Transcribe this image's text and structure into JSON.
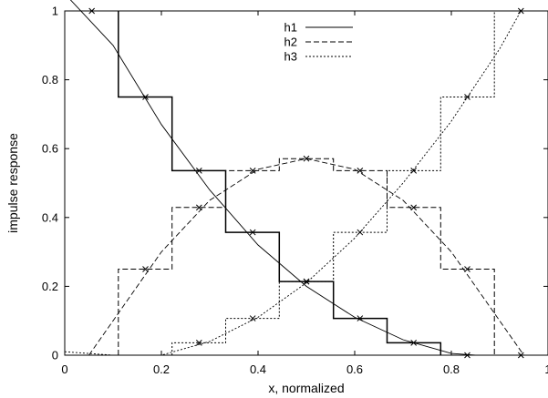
{
  "chart_data": {
    "type": "line",
    "title": "",
    "xlabel": "x, normalized",
    "ylabel": "impulse response",
    "xlim": [
      0,
      1
    ],
    "ylim": [
      0,
      1
    ],
    "x_ticks": [
      "0",
      "0.2",
      "0.4",
      "0.6",
      "0.8",
      "1"
    ],
    "y_ticks": [
      "0",
      "0.2",
      "0.4",
      "0.6",
      "0.8",
      "1"
    ],
    "grid": false,
    "legend_position": "top-center",
    "series": [
      {
        "name": "h1",
        "style": "solid",
        "curve": [
          [
            0.0,
            1.05
          ],
          [
            0.1,
            0.9
          ],
          [
            0.2,
            0.67
          ],
          [
            0.3,
            0.48
          ],
          [
            0.4,
            0.32
          ],
          [
            0.5,
            0.2
          ],
          [
            0.6,
            0.11
          ],
          [
            0.7,
            0.045
          ],
          [
            0.8,
            0.005
          ],
          [
            0.85,
            0.0
          ]
        ],
        "markers": [
          [
            0.056,
            1.0
          ],
          [
            0.167,
            0.75
          ],
          [
            0.278,
            0.536
          ],
          [
            0.389,
            0.357
          ],
          [
            0.5,
            0.214
          ],
          [
            0.611,
            0.107
          ],
          [
            0.722,
            0.036
          ],
          [
            0.833,
            0.0
          ]
        ],
        "steps": [
          [
            0.111,
            1.0
          ],
          [
            0.111,
            0.75
          ],
          [
            0.222,
            0.75
          ],
          [
            0.222,
            0.536
          ],
          [
            0.333,
            0.536
          ],
          [
            0.333,
            0.357
          ],
          [
            0.444,
            0.357
          ],
          [
            0.444,
            0.214
          ],
          [
            0.556,
            0.214
          ],
          [
            0.556,
            0.107
          ],
          [
            0.667,
            0.107
          ],
          [
            0.667,
            0.036
          ],
          [
            0.778,
            0.036
          ],
          [
            0.778,
            0.0
          ]
        ]
      },
      {
        "name": "h2",
        "style": "dashed",
        "curve": [
          [
            0.05,
            0.0
          ],
          [
            0.1,
            0.1
          ],
          [
            0.2,
            0.3
          ],
          [
            0.3,
            0.45
          ],
          [
            0.4,
            0.54
          ],
          [
            0.5,
            0.571
          ],
          [
            0.6,
            0.54
          ],
          [
            0.7,
            0.45
          ],
          [
            0.8,
            0.3
          ],
          [
            0.9,
            0.1
          ],
          [
            0.95,
            0.0
          ]
        ],
        "markers": [
          [
            0.167,
            0.25
          ],
          [
            0.278,
            0.429
          ],
          [
            0.389,
            0.536
          ],
          [
            0.5,
            0.571
          ],
          [
            0.611,
            0.536
          ],
          [
            0.722,
            0.429
          ],
          [
            0.833,
            0.25
          ],
          [
            0.944,
            0.0
          ]
        ],
        "steps": [
          [
            0.111,
            0.0
          ],
          [
            0.111,
            0.25
          ],
          [
            0.222,
            0.25
          ],
          [
            0.222,
            0.429
          ],
          [
            0.333,
            0.429
          ],
          [
            0.333,
            0.536
          ],
          [
            0.444,
            0.536
          ],
          [
            0.444,
            0.571
          ],
          [
            0.556,
            0.571
          ],
          [
            0.556,
            0.536
          ],
          [
            0.667,
            0.536
          ],
          [
            0.667,
            0.429
          ],
          [
            0.778,
            0.429
          ],
          [
            0.778,
            0.25
          ],
          [
            0.889,
            0.25
          ],
          [
            0.889,
            0.0
          ]
        ]
      },
      {
        "name": "h3",
        "style": "dotted",
        "curve": [
          [
            0.0,
            0.01
          ],
          [
            0.1,
            0.0
          ],
          [
            0.2,
            0.0
          ],
          [
            0.3,
            0.04
          ],
          [
            0.4,
            0.11
          ],
          [
            0.5,
            0.21
          ],
          [
            0.6,
            0.34
          ],
          [
            0.7,
            0.5
          ],
          [
            0.8,
            0.68
          ],
          [
            0.9,
            0.89
          ],
          [
            0.944,
            1.0
          ],
          [
            1.0,
            1.0
          ]
        ],
        "markers": [
          [
            0.278,
            0.036
          ],
          [
            0.389,
            0.107
          ],
          [
            0.5,
            0.214
          ],
          [
            0.611,
            0.357
          ],
          [
            0.722,
            0.536
          ],
          [
            0.833,
            0.75
          ],
          [
            0.944,
            1.0
          ]
        ],
        "steps": [
          [
            0.222,
            0.0
          ],
          [
            0.222,
            0.036
          ],
          [
            0.333,
            0.036
          ],
          [
            0.333,
            0.107
          ],
          [
            0.444,
            0.107
          ],
          [
            0.444,
            0.214
          ],
          [
            0.556,
            0.214
          ],
          [
            0.556,
            0.357
          ],
          [
            0.667,
            0.357
          ],
          [
            0.667,
            0.536
          ],
          [
            0.778,
            0.536
          ],
          [
            0.778,
            0.75
          ],
          [
            0.889,
            0.75
          ],
          [
            0.889,
            1.0
          ]
        ]
      }
    ]
  }
}
